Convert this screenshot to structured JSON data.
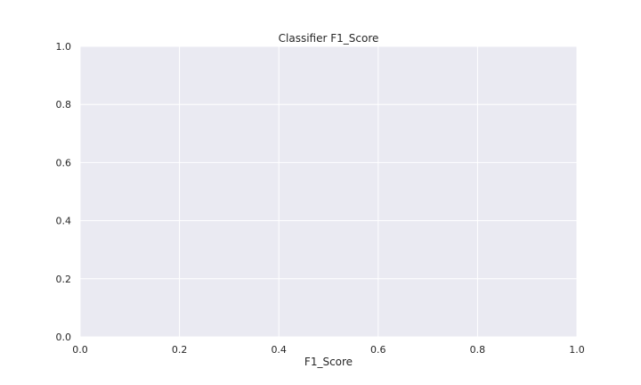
{
  "chart_data": {
    "type": "bar",
    "title": "Classifier F1_Score",
    "xlabel": "F1_Score",
    "ylabel": "",
    "xlim": [
      0,
      1
    ],
    "ylim": [
      0,
      1
    ],
    "xticks": [
      "0.0",
      "0.2",
      "0.4",
      "0.6",
      "0.8",
      "1.0"
    ],
    "yticks": [
      "0.0",
      "0.2",
      "0.4",
      "0.6",
      "0.8",
      "1.0"
    ],
    "grid": true,
    "series": []
  },
  "style": {
    "plot_background": "#eaeaf2",
    "grid_color": "#ffffff",
    "text_color": "#262626"
  }
}
